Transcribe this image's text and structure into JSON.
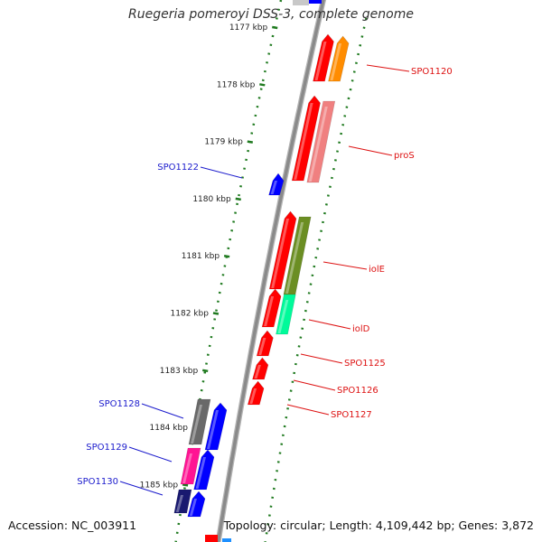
{
  "title": "Ruegeria pomeroyi DSS-3, complete genome",
  "accession": "Accession: NC_003911",
  "summary": "Topology: circular; Length: 4,109,442 bp; Genes: 3,872",
  "colors": {
    "forward_label": "#dd1111",
    "reverse_label": "#1a1acc",
    "tick": "#1f7a1f",
    "backbone": "#8a8a8a",
    "tick_label": "#222222"
  },
  "ticks": [
    {
      "kbp": 1177,
      "label": "1177 kbp"
    },
    {
      "kbp": 1178,
      "label": "1178 kbp"
    },
    {
      "kbp": 1179,
      "label": "1179 kbp"
    },
    {
      "kbp": 1180,
      "label": "1180 kbp"
    },
    {
      "kbp": 1181,
      "label": "1181 kbp"
    },
    {
      "kbp": 1182,
      "label": "1182 kbp"
    },
    {
      "kbp": 1183,
      "label": "1183 kbp"
    },
    {
      "kbp": 1184,
      "label": "1184 kbp"
    },
    {
      "kbp": 1185,
      "label": "1185 kbp"
    }
  ],
  "genes": [
    {
      "name": "SPO1120",
      "strand": "forward",
      "color": "#ff8c00",
      "labeled": true
    },
    {
      "name": "proS",
      "strand": "forward",
      "color": "#f08080",
      "labeled": true
    },
    {
      "name": "SPO1122",
      "strand": "reverse",
      "color": "#0000ff",
      "labeled": true
    },
    {
      "name": "iolE",
      "strand": "forward",
      "color": "#6b8e23",
      "labeled": true
    },
    {
      "name": "iolD",
      "strand": "forward",
      "color": "#00fa9a",
      "labeled": true
    },
    {
      "name": "SPO1125",
      "strand": "forward",
      "color": "#ff0000",
      "labeled": true
    },
    {
      "name": "SPO1126",
      "strand": "forward",
      "color": "#ff0000",
      "labeled": true
    },
    {
      "name": "SPO1127",
      "strand": "forward",
      "color": "#ff0000",
      "labeled": true
    },
    {
      "name": "SPO1128",
      "strand": "reverse",
      "color": "#696969",
      "labeled": true
    },
    {
      "name": "SPO1129",
      "strand": "reverse",
      "color": "#ff1493",
      "labeled": true
    },
    {
      "name": "SPO1130",
      "strand": "reverse",
      "color": "#191970",
      "labeled": true
    }
  ]
}
